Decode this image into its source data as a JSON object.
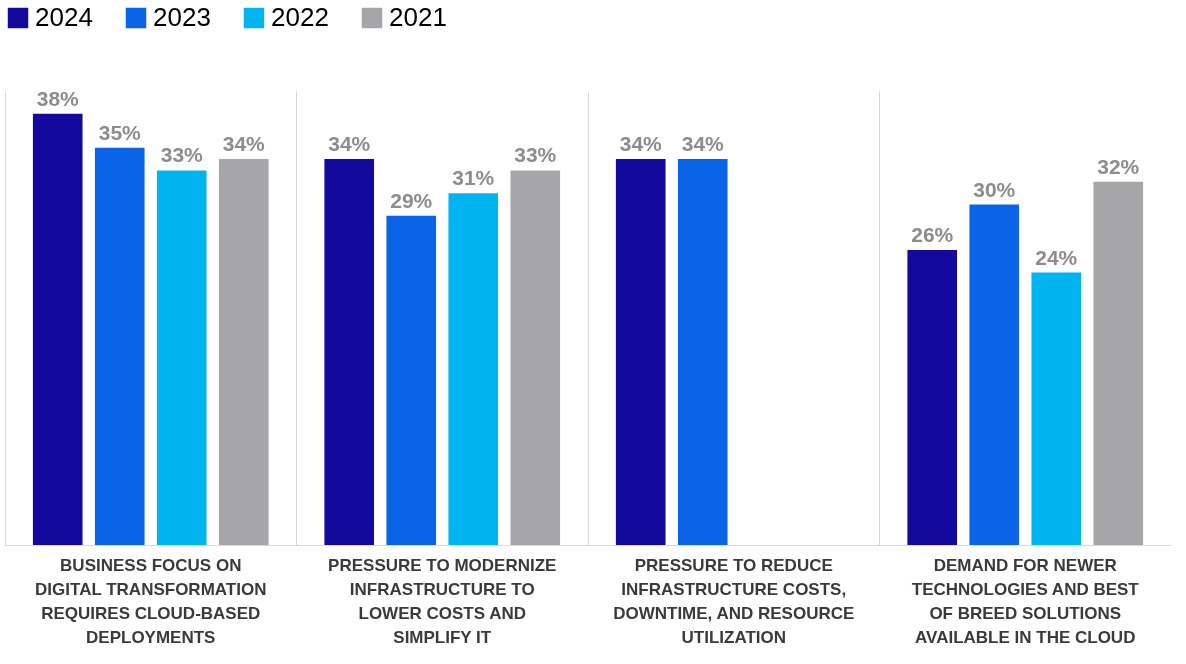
{
  "chart_data": {
    "type": "bar",
    "categories": [
      "BUSINESS FOCUS ON DIGITAL TRANSFORMATION REQUIRES CLOUD-BASED DEPLOYMENTS",
      "PRESSURE TO MODERNIZE INFRASTRUCTURE TO LOWER COSTS AND SIMPLIFY IT",
      "PRESSURE TO REDUCE INFRASTRUCTURE COSTS, DOWNTIME, AND RESOURCE UTILIZATION",
      "DEMAND FOR NEWER TECHNOLOGIES AND BEST OF BREED SOLUTIONS AVAILABLE IN THE CLOUD"
    ],
    "series": [
      {
        "name": "2024",
        "color": "#13099c",
        "values": [
          38,
          34,
          34,
          26
        ],
        "value_labels": [
          "38%",
          "34%",
          "34%",
          "26%"
        ]
      },
      {
        "name": "2023",
        "color": "#0a64e8",
        "values": [
          35,
          29,
          34,
          30
        ],
        "value_labels": [
          "35%",
          "29%",
          "34%",
          "30%"
        ]
      },
      {
        "name": "2022",
        "color": "#00b4f0",
        "values": [
          33,
          31,
          null,
          24
        ],
        "value_labels": [
          "33%",
          "31%",
          null,
          "24%"
        ]
      },
      {
        "name": "2021",
        "color": "#a6a6a8",
        "values": [
          34,
          33,
          null,
          32
        ],
        "value_labels": [
          "34%",
          "33%",
          null,
          "32%"
        ]
      }
    ],
    "ylim": [
      0,
      40
    ],
    "grid": "x",
    "legend": "top left"
  }
}
